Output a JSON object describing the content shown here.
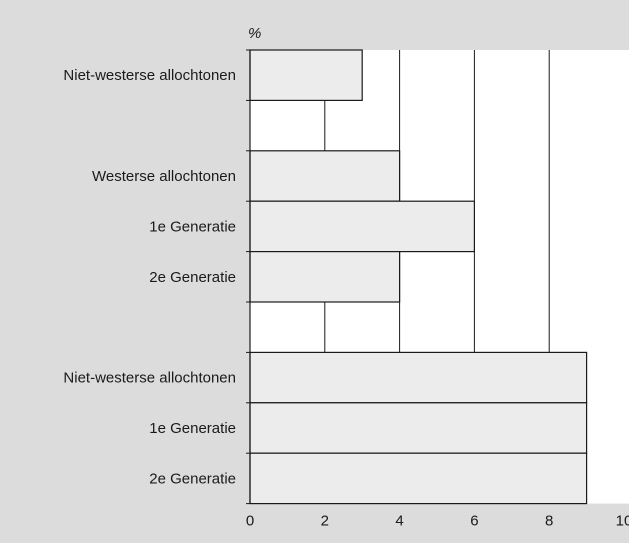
{
  "chart_data": {
    "type": "bar",
    "orientation": "horizontal",
    "unit_label": "%",
    "xlim": [
      0,
      10
    ],
    "x_ticks": [
      "0",
      "2",
      "4",
      "6",
      "8",
      "10"
    ],
    "gridlines": true,
    "categories": [
      "Niet-westerse allochtonen",
      "",
      "Westerse allochtonen",
      "1e Generatie",
      "2e Generatie",
      "",
      "Niet-westerse allochtonen",
      "1e Generatie",
      "2e Generatie"
    ],
    "values": [
      3,
      null,
      4,
      6,
      4,
      null,
      9,
      9,
      9
    ],
    "colors": {
      "background": "#dcdcdc",
      "plot_background": "#ffffff",
      "bar_fill": "#ececec",
      "stroke": "#1a1a1a"
    }
  }
}
